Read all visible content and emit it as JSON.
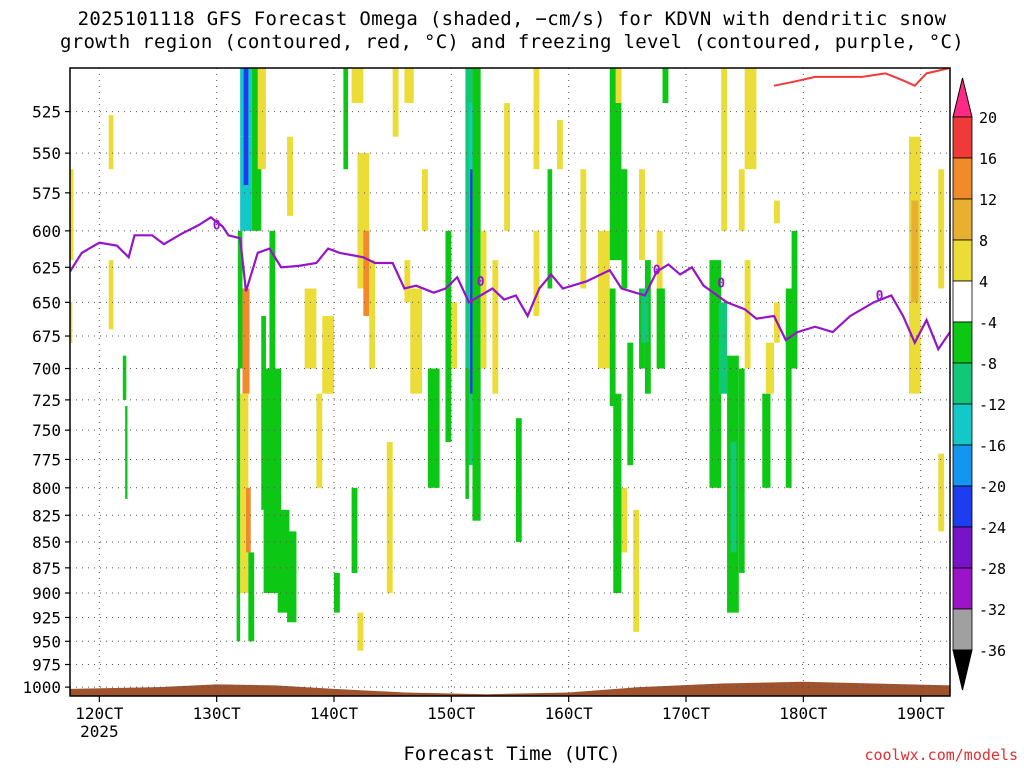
{
  "chart_data": {
    "type": "heatmap",
    "title_lines": [
      "2025101118 GFS Forecast Omega (shaded, −cm/s) for KDVN with dendritic snow",
      "growth region (contoured, red, °C) and freezing level (contoured, purple, °C)"
    ],
    "xlabel": "Forecast Time (UTC)",
    "x_ticks": [
      "120CT",
      "130CT",
      "140CT",
      "150CT",
      "160CT",
      "170CT",
      "180CT",
      "190CT"
    ],
    "x_year": "2025",
    "x_range_days": [
      11.75,
      19.25
    ],
    "y_ticks": [
      525,
      550,
      575,
      600,
      625,
      650,
      675,
      700,
      725,
      750,
      775,
      800,
      825,
      850,
      875,
      900,
      925,
      950,
      975,
      1000
    ],
    "y_range_hpa": [
      1010,
      500
    ],
    "grid": true,
    "colorbar": {
      "labels": [
        "20",
        "16",
        "12",
        "8",
        "4",
        "-4",
        "-8",
        "-12",
        "-16",
        "-20",
        "-24",
        "-28",
        "-32",
        "-36"
      ],
      "colors": [
        "#ff2a86",
        "#f03a3a",
        "#f08a2a",
        "#e8b030",
        "#ecdc38",
        "#ffffff",
        "#0cc814",
        "#10c878",
        "#14c8c8",
        "#1496f0",
        "#1e3cf0",
        "#7814c8",
        "#9c14c8",
        "#a0a0a0",
        "#000000"
      ]
    },
    "freezing_level": {
      "label": "0",
      "color": "#9614c8",
      "points": [
        [
          11.75,
          628
        ],
        [
          11.85,
          615
        ],
        [
          12.0,
          608
        ],
        [
          12.15,
          610
        ],
        [
          12.25,
          618
        ],
        [
          12.3,
          603
        ],
        [
          12.45,
          603
        ],
        [
          12.55,
          609
        ],
        [
          12.7,
          602
        ],
        [
          12.85,
          596
        ],
        [
          12.95,
          591
        ],
        [
          13.05,
          597
        ],
        [
          13.1,
          603
        ],
        [
          13.2,
          605
        ],
        [
          13.25,
          642
        ],
        [
          13.35,
          615
        ],
        [
          13.45,
          612
        ],
        [
          13.55,
          625
        ],
        [
          13.7,
          624
        ],
        [
          13.85,
          622
        ],
        [
          13.95,
          612
        ],
        [
          14.05,
          615
        ],
        [
          14.25,
          618
        ],
        [
          14.35,
          622
        ],
        [
          14.5,
          622
        ],
        [
          14.6,
          640
        ],
        [
          14.7,
          638
        ],
        [
          14.85,
          643
        ],
        [
          14.95,
          640
        ],
        [
          15.05,
          632
        ],
        [
          15.15,
          650
        ],
        [
          15.25,
          645
        ],
        [
          15.35,
          640
        ],
        [
          15.45,
          648
        ],
        [
          15.55,
          645
        ],
        [
          15.65,
          660
        ],
        [
          15.75,
          640
        ],
        [
          15.85,
          630
        ],
        [
          15.95,
          640
        ],
        [
          16.15,
          635
        ],
        [
          16.35,
          627
        ],
        [
          16.45,
          640
        ],
        [
          16.65,
          645
        ],
        [
          16.75,
          628
        ],
        [
          16.85,
          623
        ],
        [
          16.95,
          630
        ],
        [
          17.05,
          625
        ],
        [
          17.15,
          638
        ],
        [
          17.35,
          650
        ],
        [
          17.5,
          655
        ],
        [
          17.6,
          662
        ],
        [
          17.75,
          660
        ],
        [
          17.85,
          678
        ],
        [
          17.95,
          672
        ],
        [
          18.1,
          668
        ],
        [
          18.25,
          672
        ],
        [
          18.4,
          660
        ],
        [
          18.6,
          650
        ],
        [
          18.75,
          645
        ],
        [
          18.85,
          660
        ],
        [
          18.95,
          680
        ],
        [
          19.05,
          663
        ],
        [
          19.15,
          685
        ],
        [
          19.25,
          672
        ]
      ]
    },
    "dgz_top": {
      "color": "#f03a3a",
      "points": [
        [
          17.75,
          510
        ],
        [
          17.9,
          508
        ],
        [
          18.1,
          505
        ],
        [
          18.3,
          505
        ],
        [
          18.5,
          505
        ],
        [
          18.7,
          503
        ],
        [
          18.85,
          507
        ],
        [
          18.95,
          510
        ],
        [
          19.05,
          503
        ],
        [
          19.25,
          500
        ]
      ]
    },
    "omega_cells": [
      [
        12.08,
        12.12,
        527,
        560,
        "#ecdc38"
      ],
      [
        12.08,
        12.12,
        620,
        670,
        "#ecdc38"
      ],
      [
        11.75,
        11.78,
        560,
        620,
        "#ecdc38"
      ],
      [
        11.75,
        11.77,
        650,
        680,
        "#ecdc38"
      ],
      [
        12.2,
        12.23,
        690,
        725,
        "#0cc814"
      ],
      [
        12.22,
        12.24,
        730,
        810,
        "#0cc814"
      ],
      [
        13.2,
        13.3,
        500,
        540,
        "#14c8c8"
      ],
      [
        13.2,
        13.3,
        540,
        600,
        "#14c8c8"
      ],
      [
        13.23,
        13.27,
        500,
        570,
        "#1e3cf0"
      ],
      [
        13.3,
        13.38,
        500,
        600,
        "#0cc814"
      ],
      [
        13.18,
        13.22,
        600,
        700,
        "#0cc814"
      ],
      [
        13.22,
        13.28,
        640,
        720,
        "#f08a2a"
      ],
      [
        13.2,
        13.27,
        720,
        900,
        "#ecdc38"
      ],
      [
        13.25,
        13.29,
        800,
        860,
        "#f08a2a"
      ],
      [
        13.17,
        13.2,
        700,
        950,
        "#0cc814"
      ],
      [
        13.27,
        13.32,
        860,
        950,
        "#0cc814"
      ],
      [
        13.38,
        13.42,
        660,
        820,
        "#0cc814"
      ],
      [
        13.4,
        13.55,
        700,
        900,
        "#0cc814"
      ],
      [
        13.45,
        13.5,
        800,
        880,
        "#0cc814"
      ],
      [
        13.52,
        13.62,
        820,
        920,
        "#0cc814"
      ],
      [
        13.6,
        13.68,
        840,
        930,
        "#0cc814"
      ],
      [
        13.35,
        13.42,
        500,
        560,
        "#ecdc38"
      ],
      [
        13.45,
        13.5,
        600,
        700,
        "#0cc814"
      ],
      [
        13.6,
        13.65,
        540,
        590,
        "#ecdc38"
      ],
      [
        13.75,
        13.85,
        640,
        700,
        "#ecdc38"
      ],
      [
        13.9,
        14.0,
        660,
        720,
        "#ecdc38"
      ],
      [
        13.85,
        13.9,
        720,
        800,
        "#ecdc38"
      ],
      [
        14.0,
        14.05,
        880,
        920,
        "#0cc814"
      ],
      [
        14.15,
        14.2,
        800,
        880,
        "#0cc814"
      ],
      [
        14.2,
        14.25,
        920,
        960,
        "#ecdc38"
      ],
      [
        14.08,
        14.12,
        500,
        560,
        "#0cc814"
      ],
      [
        14.15,
        14.25,
        500,
        520,
        "#ecdc38"
      ],
      [
        14.2,
        14.3,
        550,
        640,
        "#ecdc38"
      ],
      [
        14.25,
        14.3,
        600,
        660,
        "#f08a2a"
      ],
      [
        14.3,
        14.35,
        620,
        700,
        "#ecdc38"
      ],
      [
        14.45,
        14.5,
        760,
        900,
        "#ecdc38"
      ],
      [
        14.5,
        14.55,
        500,
        540,
        "#ecdc38"
      ],
      [
        14.6,
        14.65,
        620,
        650,
        "#ecdc38"
      ],
      [
        14.65,
        14.75,
        640,
        720,
        "#ecdc38"
      ],
      [
        14.8,
        14.9,
        700,
        800,
        "#0cc814"
      ],
      [
        14.95,
        15.0,
        600,
        760,
        "#0cc814"
      ],
      [
        15.0,
        15.05,
        650,
        700,
        "#ecdc38"
      ],
      [
        14.6,
        14.68,
        500,
        520,
        "#ecdc38"
      ],
      [
        14.75,
        14.8,
        560,
        600,
        "#ecdc38"
      ],
      [
        15.12,
        15.18,
        500,
        780,
        "#10c878"
      ],
      [
        15.15,
        15.2,
        520,
        700,
        "#14c8c8"
      ],
      [
        15.16,
        15.19,
        560,
        720,
        "#1e3cf0"
      ],
      [
        15.18,
        15.25,
        500,
        830,
        "#0cc814"
      ],
      [
        15.12,
        15.15,
        700,
        810,
        "#0cc814"
      ],
      [
        15.25,
        15.3,
        600,
        700,
        "#ecdc38"
      ],
      [
        15.35,
        15.4,
        620,
        720,
        "#ecdc38"
      ],
      [
        15.45,
        15.5,
        520,
        600,
        "#ecdc38"
      ],
      [
        15.55,
        15.6,
        740,
        850,
        "#0cc814"
      ],
      [
        15.7,
        15.75,
        600,
        660,
        "#ecdc38"
      ],
      [
        15.7,
        15.75,
        500,
        560,
        "#ecdc38"
      ],
      [
        15.82,
        15.86,
        560,
        640,
        "#0cc814"
      ],
      [
        15.9,
        15.95,
        530,
        560,
        "#ecdc38"
      ],
      [
        16.1,
        16.15,
        560,
        640,
        "#ecdc38"
      ],
      [
        16.25,
        16.35,
        600,
        700,
        "#ecdc38"
      ],
      [
        16.35,
        16.45,
        500,
        620,
        "#0cc814"
      ],
      [
        16.35,
        16.4,
        640,
        730,
        "#0cc814"
      ],
      [
        16.38,
        16.45,
        720,
        900,
        "#0cc814"
      ],
      [
        16.45,
        16.5,
        560,
        640,
        "#0cc814"
      ],
      [
        16.5,
        16.55,
        680,
        780,
        "#0cc814"
      ],
      [
        16.6,
        16.65,
        560,
        620,
        "#ecdc38"
      ],
      [
        16.6,
        16.65,
        640,
        700,
        "#0cc814"
      ],
      [
        16.65,
        16.7,
        620,
        720,
        "#0cc814"
      ],
      [
        16.62,
        16.68,
        640,
        680,
        "#10c878"
      ],
      [
        16.55,
        16.6,
        820,
        940,
        "#ecdc38"
      ],
      [
        16.45,
        16.5,
        800,
        860,
        "#ecdc38"
      ],
      [
        16.75,
        16.8,
        600,
        700,
        "#ecdc38"
      ],
      [
        16.75,
        16.82,
        640,
        700,
        "#0cc814"
      ],
      [
        16.8,
        16.85,
        500,
        520,
        "#0cc814"
      ],
      [
        16.4,
        16.45,
        500,
        520,
        "#ecdc38"
      ],
      [
        17.2,
        17.3,
        620,
        800,
        "#0cc814"
      ],
      [
        17.28,
        17.35,
        650,
        720,
        "#10c878"
      ],
      [
        17.22,
        17.28,
        720,
        780,
        "#0cc814"
      ],
      [
        17.35,
        17.45,
        690,
        920,
        "#0cc814"
      ],
      [
        17.38,
        17.43,
        760,
        860,
        "#10c878"
      ],
      [
        17.45,
        17.5,
        700,
        880,
        "#0cc814"
      ],
      [
        17.45,
        17.5,
        560,
        600,
        "#ecdc38"
      ],
      [
        17.5,
        17.55,
        620,
        700,
        "#ecdc38"
      ],
      [
        17.3,
        17.35,
        500,
        600,
        "#ecdc38"
      ],
      [
        17.5,
        17.6,
        500,
        560,
        "#ecdc38"
      ],
      [
        17.65,
        17.72,
        720,
        800,
        "#0cc814"
      ],
      [
        17.75,
        17.8,
        650,
        680,
        "#ecdc38"
      ],
      [
        17.85,
        17.92,
        640,
        700,
        "#0cc814"
      ],
      [
        17.9,
        17.95,
        600,
        700,
        "#0cc814"
      ],
      [
        17.85,
        17.9,
        700,
        800,
        "#0cc814"
      ],
      [
        17.68,
        17.75,
        680,
        720,
        "#ecdc38"
      ],
      [
        17.75,
        17.8,
        580,
        595,
        "#ecdc38"
      ],
      [
        18.9,
        19.0,
        540,
        720,
        "#ecdc38"
      ],
      [
        18.92,
        18.98,
        580,
        650,
        "#e8b030"
      ],
      [
        19.15,
        19.2,
        560,
        640,
        "#ecdc38"
      ],
      [
        19.15,
        19.2,
        770,
        840,
        "#ecdc38"
      ]
    ]
  },
  "credit": "coolwx.com/models"
}
